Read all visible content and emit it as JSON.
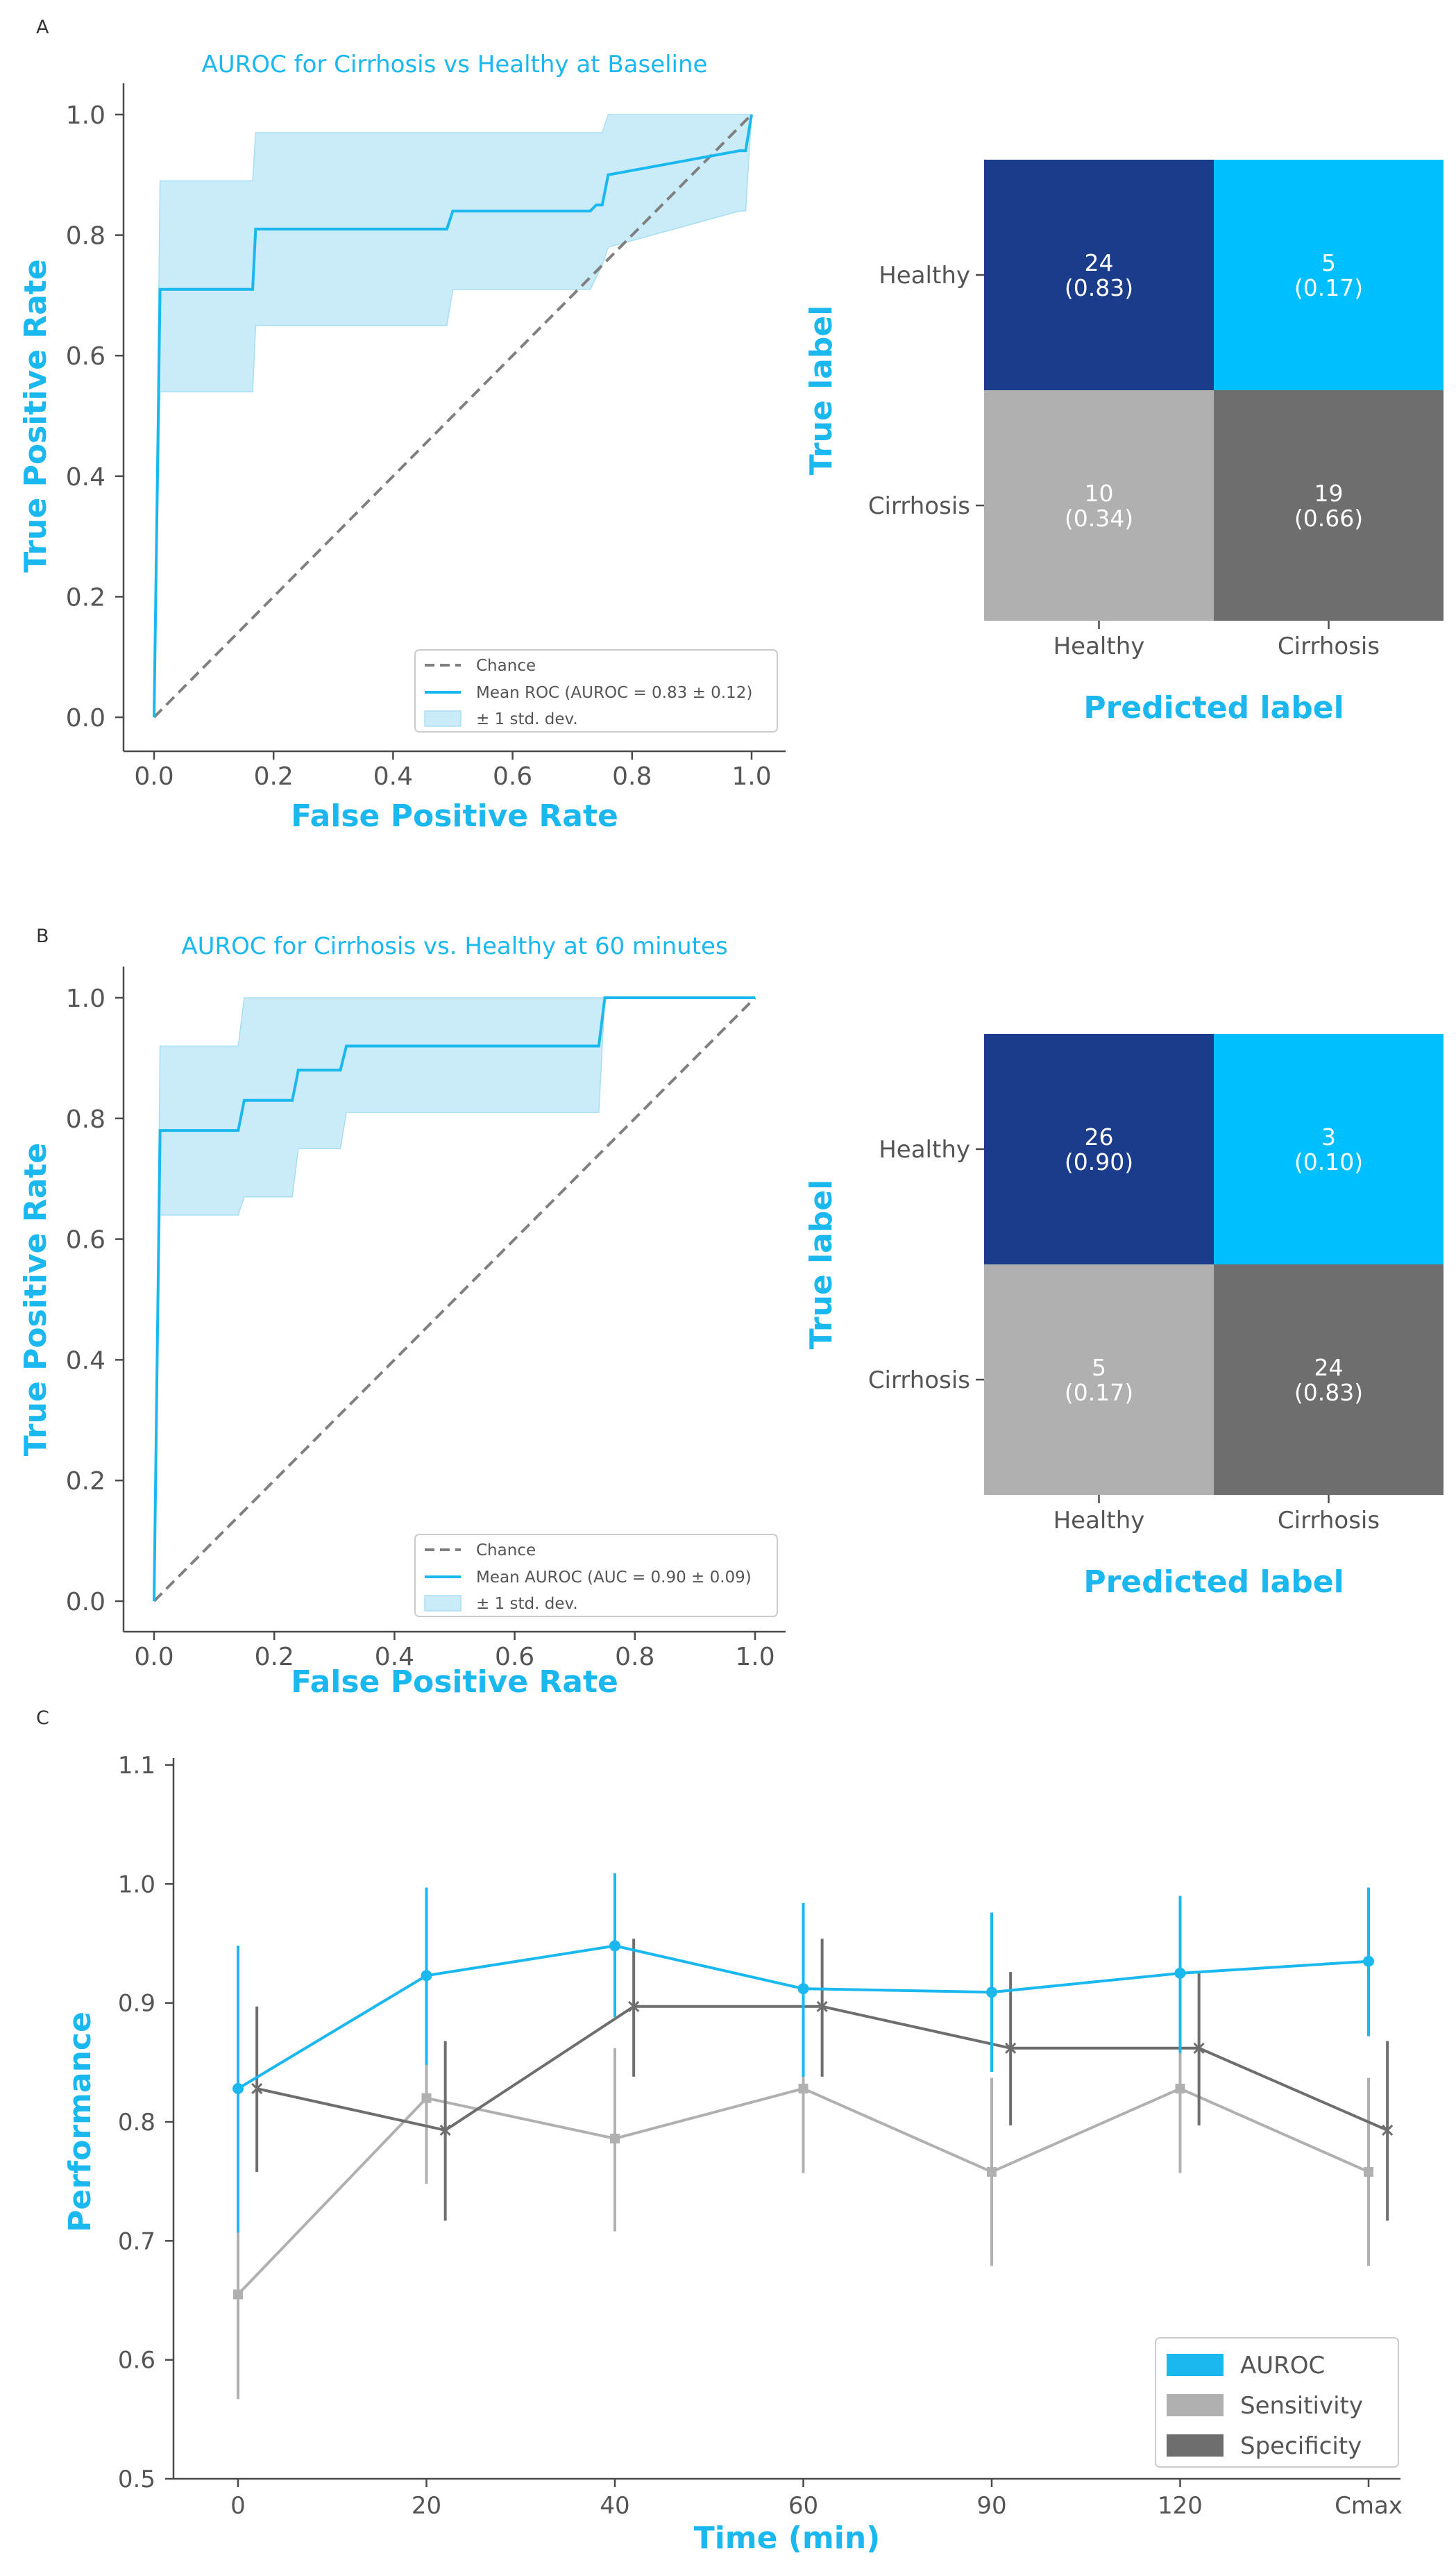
{
  "colors": {
    "accent": "#1ab8ef",
    "band": "#c9ecf8",
    "chance": "#808080",
    "axis": "#4a4a4a",
    "tick_text": "#555555",
    "navy": "#1b3c8b",
    "sky": "#00bfff",
    "light_gray": "#b0b0b0",
    "dark_gray": "#6e6e6e",
    "sens": "#b0b0b0",
    "spec": "#6e6e6e"
  },
  "panels": {
    "a": {
      "letter": "A"
    },
    "b": {
      "letter": "B"
    },
    "c": {
      "letter": "C"
    }
  },
  "chart_data": [
    {
      "id": "roc_a",
      "type": "line",
      "title": "AUROC for Cirrhosis vs Healthy at Baseline",
      "xlabel": "False Positive Rate",
      "ylabel": "True Positive Rate",
      "xlim": [
        0,
        1
      ],
      "ylim": [
        0,
        1
      ],
      "xticks": [
        0.0,
        0.2,
        0.4,
        0.6,
        0.8,
        1.0
      ],
      "xtick_labels": [
        "0.0",
        "0.2",
        "0.4",
        "0.6",
        "0.8",
        "1.0"
      ],
      "yticks": [
        0.0,
        0.2,
        0.4,
        0.6,
        0.8,
        1.0
      ],
      "ytick_labels": [
        "0.0",
        "0.2",
        "0.4",
        "0.6",
        "0.8",
        "1.0"
      ],
      "legend_position": "bottom-right",
      "legend": [
        "Chance",
        "Mean ROC (AUROC = 0.83 ± 0.12)",
        "± 1 std. dev."
      ],
      "chance": {
        "x": [
          0,
          1
        ],
        "y": [
          0,
          1
        ]
      },
      "mean": {
        "x": [
          0.0,
          0.01,
          0.165,
          0.17,
          0.49,
          0.5,
          0.73,
          0.74,
          0.75,
          0.76,
          0.98,
          0.99,
          1.0
        ],
        "y": [
          0.0,
          0.71,
          0.71,
          0.81,
          0.81,
          0.84,
          0.84,
          0.85,
          0.85,
          0.9,
          0.94,
          0.94,
          1.0
        ]
      },
      "band": {
        "x": [
          0.0,
          0.01,
          0.165,
          0.17,
          0.49,
          0.5,
          0.73,
          0.74,
          0.75,
          0.76,
          0.98,
          0.99,
          1.0
        ],
        "upper": [
          0.0,
          0.89,
          0.89,
          0.97,
          0.97,
          0.97,
          0.97,
          0.97,
          0.97,
          1.0,
          1.0,
          1.0,
          1.0
        ],
        "lower": [
          0.0,
          0.54,
          0.54,
          0.65,
          0.65,
          0.71,
          0.71,
          0.73,
          0.75,
          0.78,
          0.84,
          0.84,
          1.0
        ]
      }
    },
    {
      "id": "cm_a",
      "type": "heatmap",
      "xlabel": "Predicted label",
      "ylabel": "True label",
      "row_labels": [
        "Healthy",
        "Cirrhosis"
      ],
      "col_labels": [
        "Healthy",
        "Cirrhosis"
      ],
      "counts": [
        [
          24,
          5
        ],
        [
          10,
          19
        ]
      ],
      "fractions": [
        [
          "(0.83)",
          "(0.17)"
        ],
        [
          "(0.34)",
          "(0.66)"
        ]
      ],
      "cell_colors": [
        [
          "#1b3c8b",
          "#00bfff"
        ],
        [
          "#b0b0b0",
          "#6e6e6e"
        ]
      ]
    },
    {
      "id": "roc_b",
      "type": "line",
      "title": "AUROC for Cirrhosis vs. Healthy at 60 minutes",
      "xlabel": "False Positive Rate",
      "ylabel": "True Positive Rate",
      "xlim": [
        0,
        1
      ],
      "ylim": [
        0,
        1
      ],
      "xticks": [
        0.0,
        0.2,
        0.4,
        0.6,
        0.8,
        1.0
      ],
      "xtick_labels": [
        "0.0",
        "0.2",
        "0.4",
        "0.6",
        "0.8",
        "1.0"
      ],
      "yticks": [
        0.0,
        0.2,
        0.4,
        0.6,
        0.8,
        1.0
      ],
      "ytick_labels": [
        "0.0",
        "0.2",
        "0.4",
        "0.6",
        "0.8",
        "1.0"
      ],
      "legend_position": "bottom-right",
      "legend": [
        "Chance",
        "Mean AUROC (AUC = 0.90 ± 0.09)",
        "± 1 std. dev."
      ],
      "chance": {
        "x": [
          0,
          1
        ],
        "y": [
          0,
          1
        ]
      },
      "mean": {
        "x": [
          0.0,
          0.01,
          0.14,
          0.15,
          0.23,
          0.24,
          0.31,
          0.32,
          0.74,
          0.75,
          1.0
        ],
        "y": [
          0.0,
          0.78,
          0.78,
          0.83,
          0.83,
          0.88,
          0.88,
          0.92,
          0.92,
          1.0,
          1.0
        ]
      },
      "band": {
        "x": [
          0.0,
          0.01,
          0.14,
          0.15,
          0.23,
          0.24,
          0.31,
          0.32,
          0.74,
          0.75,
          1.0
        ],
        "upper": [
          0.0,
          0.92,
          0.92,
          1.0,
          1.0,
          1.0,
          1.0,
          1.0,
          1.0,
          1.0,
          1.0
        ],
        "lower": [
          0.0,
          0.64,
          0.64,
          0.67,
          0.67,
          0.75,
          0.75,
          0.81,
          0.81,
          1.0,
          1.0
        ]
      }
    },
    {
      "id": "cm_b",
      "type": "heatmap",
      "xlabel": "Predicted label",
      "ylabel": "True label",
      "row_labels": [
        "Healthy",
        "Cirrhosis"
      ],
      "col_labels": [
        "Healthy",
        "Cirrhosis"
      ],
      "counts": [
        [
          26,
          3
        ],
        [
          5,
          24
        ]
      ],
      "fractions": [
        [
          "(0.90)",
          "(0.10)"
        ],
        [
          "(0.17)",
          "(0.83)"
        ]
      ],
      "cell_colors": [
        [
          "#1b3c8b",
          "#00bfff"
        ],
        [
          "#b0b0b0",
          "#6e6e6e"
        ]
      ]
    },
    {
      "id": "perf_c",
      "type": "line",
      "xlabel": "Time (min)",
      "ylabel": "Performance",
      "ylim": [
        0.5,
        1.1
      ],
      "yticks": [
        0.5,
        0.6,
        0.7,
        0.8,
        0.9,
        1.0,
        1.1
      ],
      "ytick_labels": [
        "0.5",
        "0.6",
        "0.7",
        "0.8",
        "0.9",
        "1.0",
        "1.1"
      ],
      "categories": [
        "0",
        "20",
        "40",
        "60",
        "90",
        "120",
        "Cmax"
      ],
      "legend_position": "bottom-right",
      "series": [
        {
          "name": "AUROC",
          "color": "#1ab8ef",
          "marker": "circle",
          "offset": 0,
          "values": [
            0.828,
            0.923,
            0.948,
            0.912,
            0.909,
            0.925,
            0.935
          ],
          "err_low": [
            0.707,
            0.848,
            0.888,
            0.838,
            0.842,
            0.858,
            0.872
          ],
          "err_high": [
            0.948,
            0.997,
            1.009,
            0.984,
            0.976,
            0.99,
            0.997
          ]
        },
        {
          "name": "Sensitivity",
          "color": "#b0b0b0",
          "marker": "square",
          "offset": 0,
          "values": [
            0.655,
            0.82,
            0.786,
            0.828,
            0.758,
            0.828,
            0.758
          ],
          "err_low": [
            0.567,
            0.748,
            0.708,
            0.757,
            0.679,
            0.757,
            0.679
          ],
          "err_high": [
            0.742,
            0.892,
            0.862,
            0.898,
            0.837,
            0.898,
            0.837
          ]
        },
        {
          "name": "Specificity",
          "color": "#6e6e6e",
          "marker": "x",
          "offset": 0.1,
          "values": [
            0.828,
            0.793,
            0.897,
            0.897,
            0.862,
            0.862,
            0.793
          ],
          "err_low": [
            0.758,
            0.717,
            0.838,
            0.838,
            0.797,
            0.797,
            0.717
          ],
          "err_high": [
            0.897,
            0.868,
            0.954,
            0.954,
            0.926,
            0.926,
            0.868
          ]
        }
      ]
    }
  ]
}
